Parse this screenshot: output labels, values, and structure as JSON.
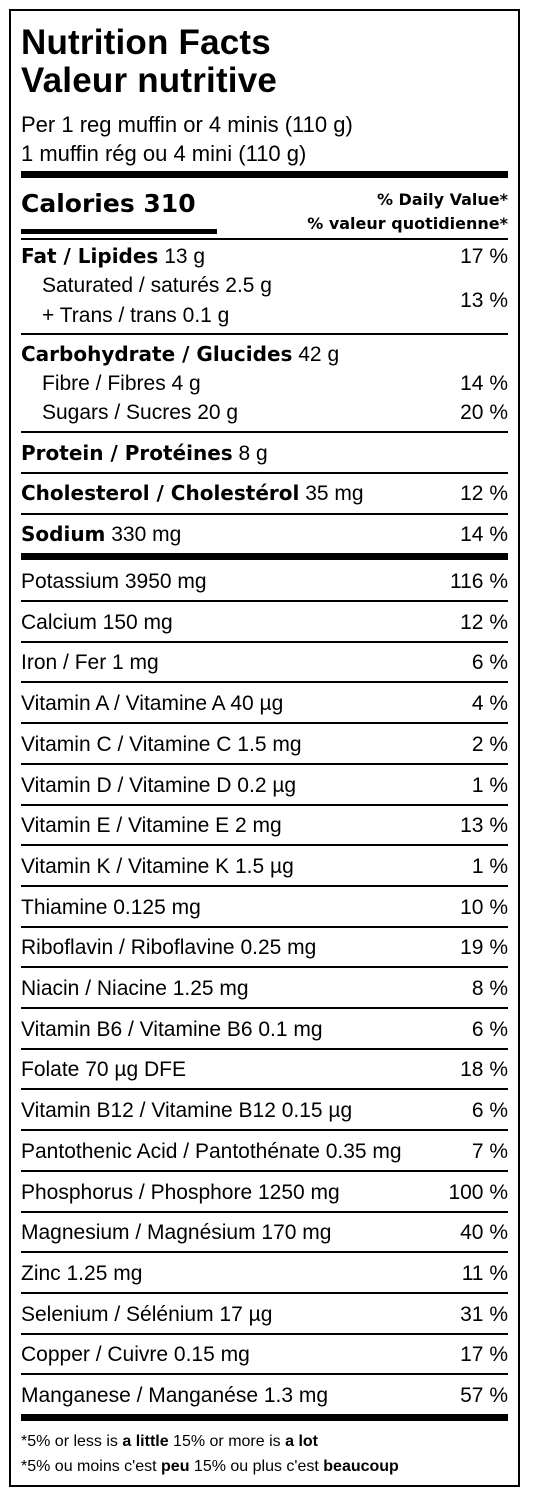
{
  "title_en": "Nutrition Facts",
  "title_fr": "Valeur nutritive",
  "serving_en": "Per 1 reg muffin or 4 minis (110 g)",
  "serving_fr": "1 muffin rég ou 4 mini (110 g)",
  "calories_label": "Calories 310",
  "dv_header_en": "% Daily Value*",
  "dv_header_fr": "% valeur quotidienne*",
  "fat": {
    "label": "Fat / Lipides",
    "amount": "13 g",
    "pct": "17 %"
  },
  "saturated": {
    "line1": "Saturated / saturés 2.5 g",
    "line2": "+ Trans / trans 0.1 g",
    "pct": "13 %"
  },
  "carbohydrate": {
    "label": "Carbohydrate / Glucides",
    "amount": "42 g"
  },
  "fibre": {
    "text": "Fibre / Fibres 4 g",
    "pct": "14 %"
  },
  "sugars": {
    "text": "Sugars / Sucres 20 g",
    "pct": "20 %"
  },
  "protein": {
    "label": "Protein / Protéines",
    "amount": "8 g"
  },
  "cholesterol": {
    "label": "Cholesterol / Cholestérol",
    "amount": "35 mg",
    "pct": "12 %"
  },
  "sodium": {
    "label": "Sodium",
    "amount": "330 mg",
    "pct": "14 %"
  },
  "nutrients": [
    {
      "text": "Potassium 3950 mg",
      "pct": "116 %"
    },
    {
      "text": "Calcium 150 mg",
      "pct": "12 %"
    },
    {
      "text": "Iron / Fer 1 mg",
      "pct": "6 %"
    },
    {
      "text": "Vitamin A / Vitamine A 40 µg",
      "pct": "4 %"
    },
    {
      "text": "Vitamin C / Vitamine C 1.5 mg",
      "pct": "2 %"
    },
    {
      "text": "Vitamin D / Vitamine D 0.2 µg",
      "pct": "1 %"
    },
    {
      "text": "Vitamin E / Vitamine E 2 mg",
      "pct": "13 %"
    },
    {
      "text": "Vitamin K / Vitamine K 1.5 µg",
      "pct": "1 %"
    },
    {
      "text": "Thiamine 0.125 mg",
      "pct": "10 %"
    },
    {
      "text": "Riboflavin / Riboflavine 0.25 mg",
      "pct": "19 %"
    },
    {
      "text": "Niacin / Niacine 1.25 mg",
      "pct": "8 %"
    },
    {
      "text": "Vitamin B6 / Vitamine B6 0.1 mg",
      "pct": "6 %"
    },
    {
      "text": "Folate 70 µg DFE",
      "pct": "18 %"
    },
    {
      "text": "Vitamin B12 / Vitamine B12 0.15 µg",
      "pct": "6 %"
    },
    {
      "text": "Pantothenic Acid / Pantothénate 0.35 mg",
      "pct": "7 %"
    },
    {
      "text": "Phosphorus / Phosphore 1250 mg",
      "pct": "100 %"
    },
    {
      "text": "Magnesium / Magnésium 170 mg",
      "pct": "40 %"
    },
    {
      "text": "Zinc 1.25 mg",
      "pct": "11 %"
    },
    {
      "text": "Selenium / Sélénium 17 µg",
      "pct": "31 %"
    },
    {
      "text": "Copper / Cuivre 0.15 mg",
      "pct": "17 %"
    },
    {
      "text": "Manganese / Manganése 1.3 mg",
      "pct": "57 %"
    }
  ],
  "footnote_en": {
    "a": "*5% or less is ",
    "b": "a little",
    "c": " 15% or more is ",
    "d": "a lot"
  },
  "footnote_fr": {
    "a": "*5% ou moins c'est ",
    "b": "peu",
    "c": " 15% ou plus c'est ",
    "d": "beaucoup"
  }
}
